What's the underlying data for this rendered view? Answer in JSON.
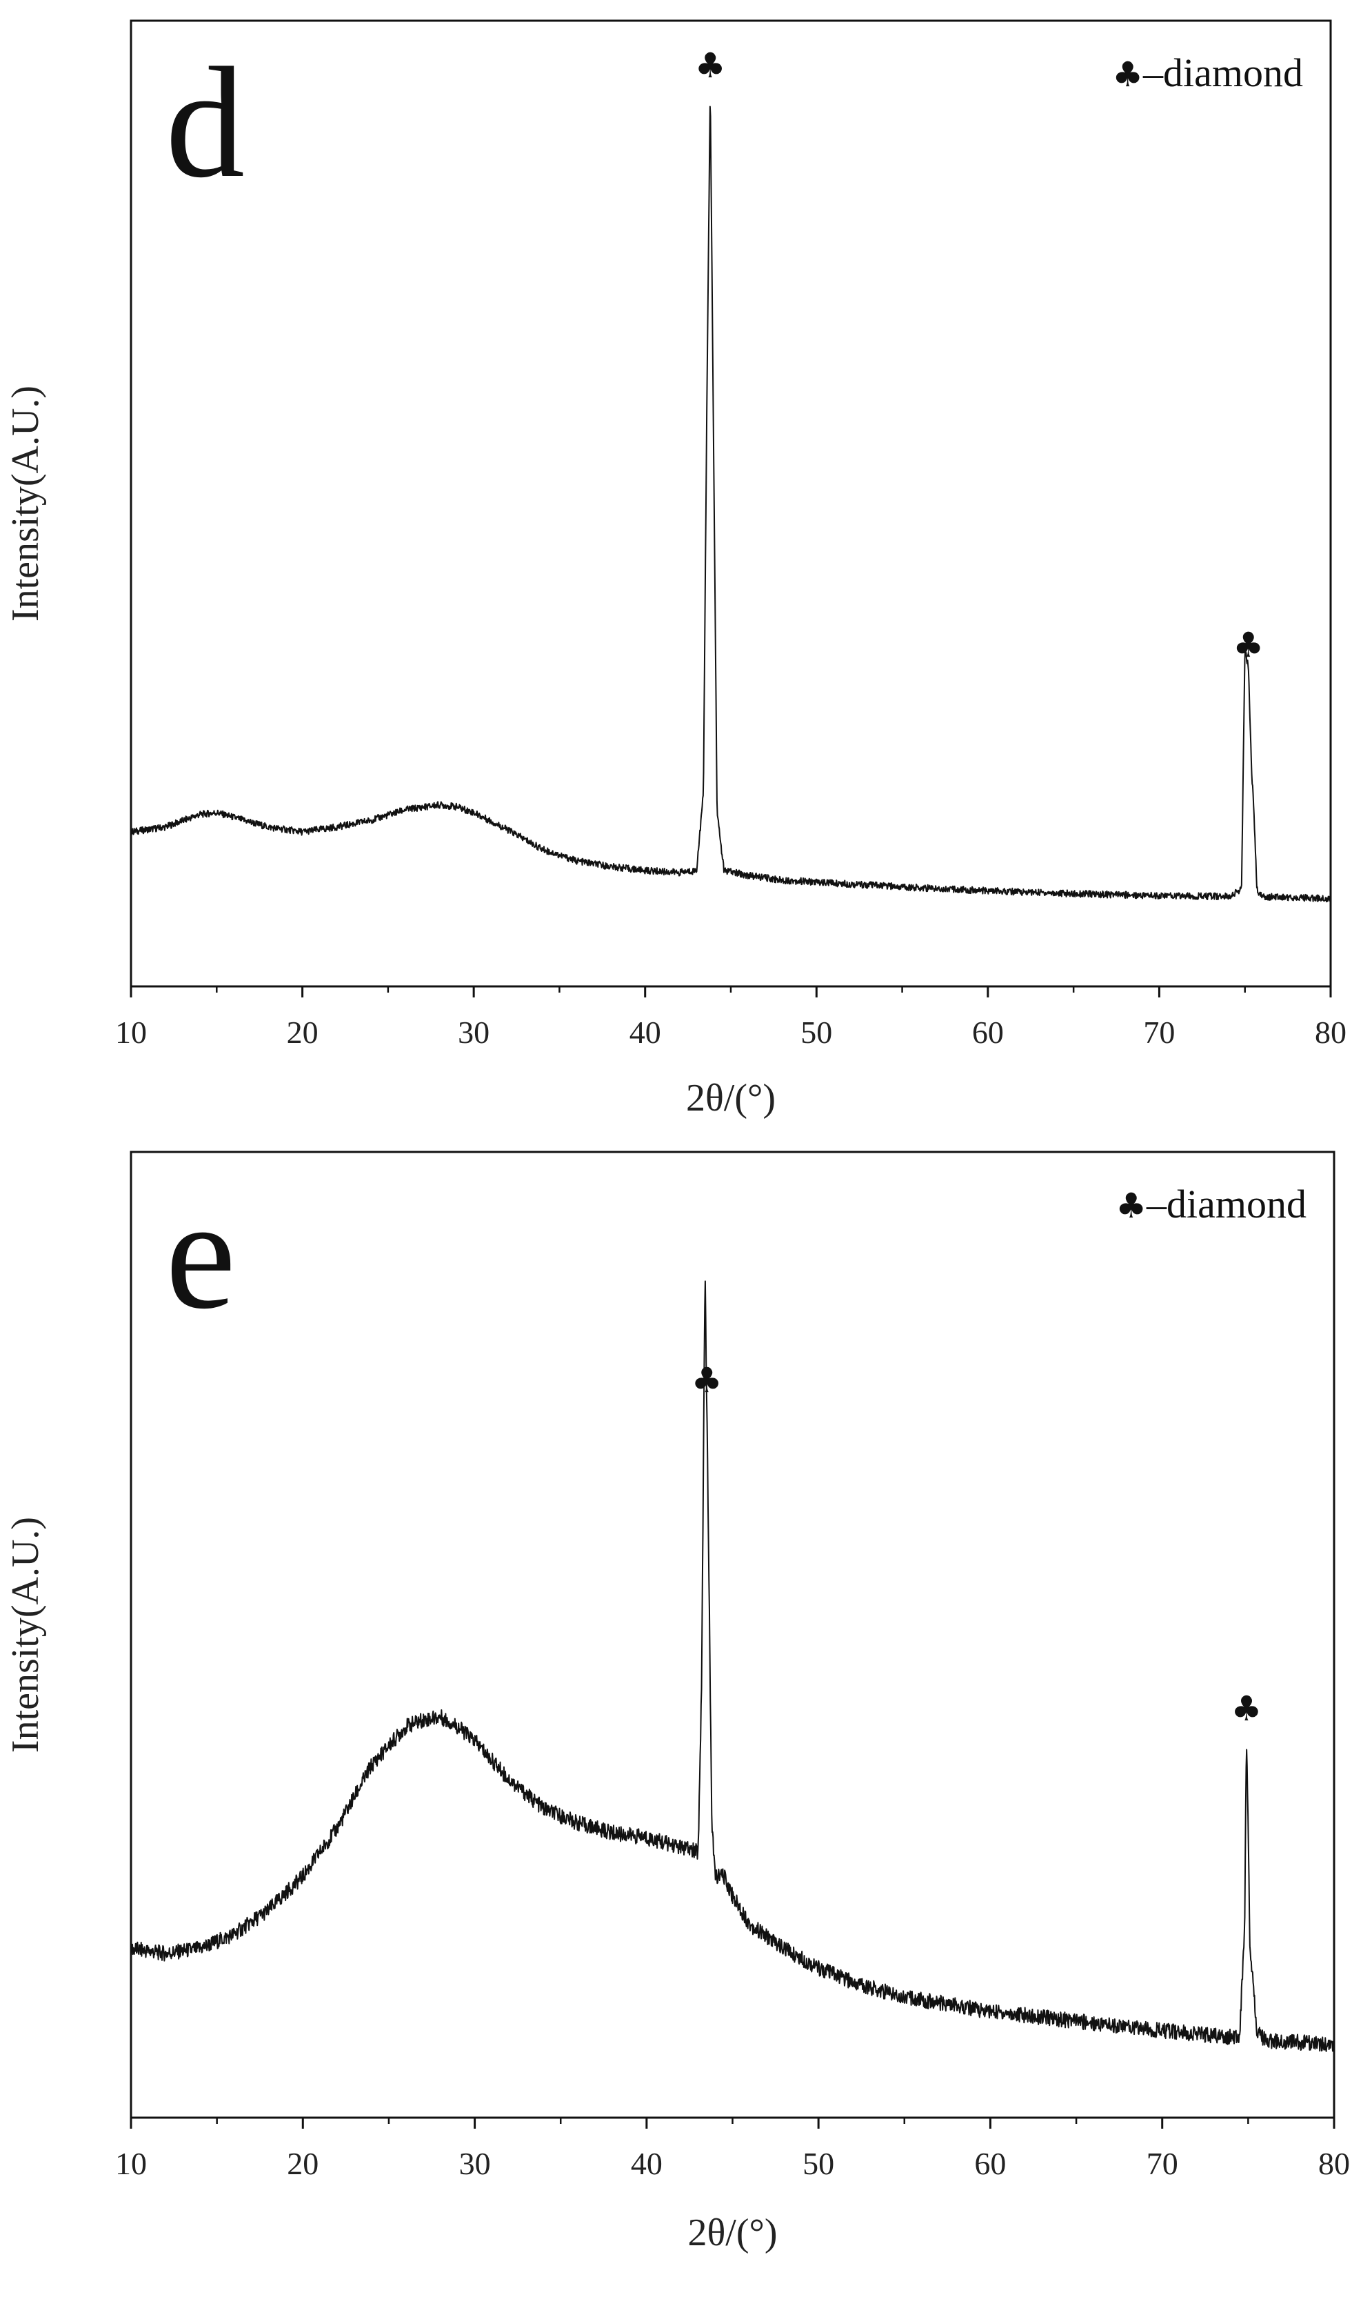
{
  "chart_data": [
    {
      "type": "line",
      "panel_label": "d",
      "xlabel": "2θ/(°)",
      "ylabel": "Intensity(A.U.)",
      "xlim": [
        10,
        80
      ],
      "ylim": [
        0,
        100
      ],
      "x_ticks": [
        "10",
        "20",
        "30",
        "40",
        "50",
        "60",
        "70",
        "80"
      ],
      "legend": {
        "symbol": "♣",
        "label": "–diamond",
        "placement": "top-right"
      },
      "marker_symbol": "♣",
      "peak_markers": [
        43.8,
        75.2
      ],
      "series": [
        {
          "name": "d",
          "x": [
            10,
            12,
            14,
            15,
            16,
            18,
            20,
            22,
            24,
            26,
            28,
            29,
            30,
            32,
            34,
            36,
            38,
            40,
            42,
            43,
            43.4,
            43.6,
            43.8,
            44.0,
            44.2,
            44.6,
            46,
            48,
            50,
            55,
            60,
            65,
            70,
            74,
            74.8,
            75.0,
            75.2,
            75.4,
            75.5,
            75.7,
            76,
            78,
            80
          ],
          "y": [
            16,
            16.5,
            17.8,
            18,
            17.5,
            16.5,
            16,
            16.5,
            17.2,
            18.3,
            18.8,
            18.6,
            18,
            16.2,
            14.2,
            13,
            12.4,
            12,
            11.8,
            12,
            20,
            60,
            93,
            55,
            18,
            12,
            11.5,
            11,
            10.8,
            10.3,
            9.9,
            9.6,
            9.4,
            9.3,
            10,
            35,
            33,
            22,
            19,
            10,
            9.3,
            9.2,
            9.1
          ]
        }
      ]
    },
    {
      "type": "line",
      "panel_label": "e",
      "xlabel": "2θ/(°)",
      "ylabel": "Intensity(A.U.)",
      "xlim": [
        10,
        80
      ],
      "ylim": [
        0,
        100
      ],
      "x_ticks": [
        "10",
        "20",
        "30",
        "40",
        "50",
        "60",
        "70",
        "80"
      ],
      "legend": {
        "symbol": "♣",
        "label": "–diamond",
        "placement": "top-right"
      },
      "marker_symbol": "♣",
      "peak_markers": [
        43.5,
        74.9
      ],
      "series": [
        {
          "name": "e",
          "x": [
            10,
            12,
            14,
            16,
            18,
            20,
            22,
            24,
            26,
            27,
            28,
            29,
            30,
            32,
            34,
            36,
            38,
            40,
            42,
            43,
            43.2,
            43.4,
            43.6,
            43.8,
            44.0,
            44.5,
            45,
            46,
            48,
            50,
            52,
            55,
            60,
            65,
            70,
            73,
            74.5,
            74.8,
            74.9,
            75.0,
            75.1,
            75.3,
            75.5,
            76,
            78,
            80
          ],
          "y": [
            17.5,
            17,
            17.5,
            19,
            21.5,
            25,
            30,
            36.5,
            40.5,
            41.2,
            41.5,
            40.5,
            39,
            35,
            32,
            30.5,
            29.5,
            29,
            28,
            27.5,
            45,
            88,
            60,
            30,
            25,
            25,
            23,
            20,
            17.5,
            15.5,
            14,
            12.5,
            11,
            10,
            9,
            8.5,
            8.3,
            20,
            40,
            30,
            18,
            14,
            9,
            8,
            7.8,
            7.5
          ]
        }
      ]
    }
  ]
}
